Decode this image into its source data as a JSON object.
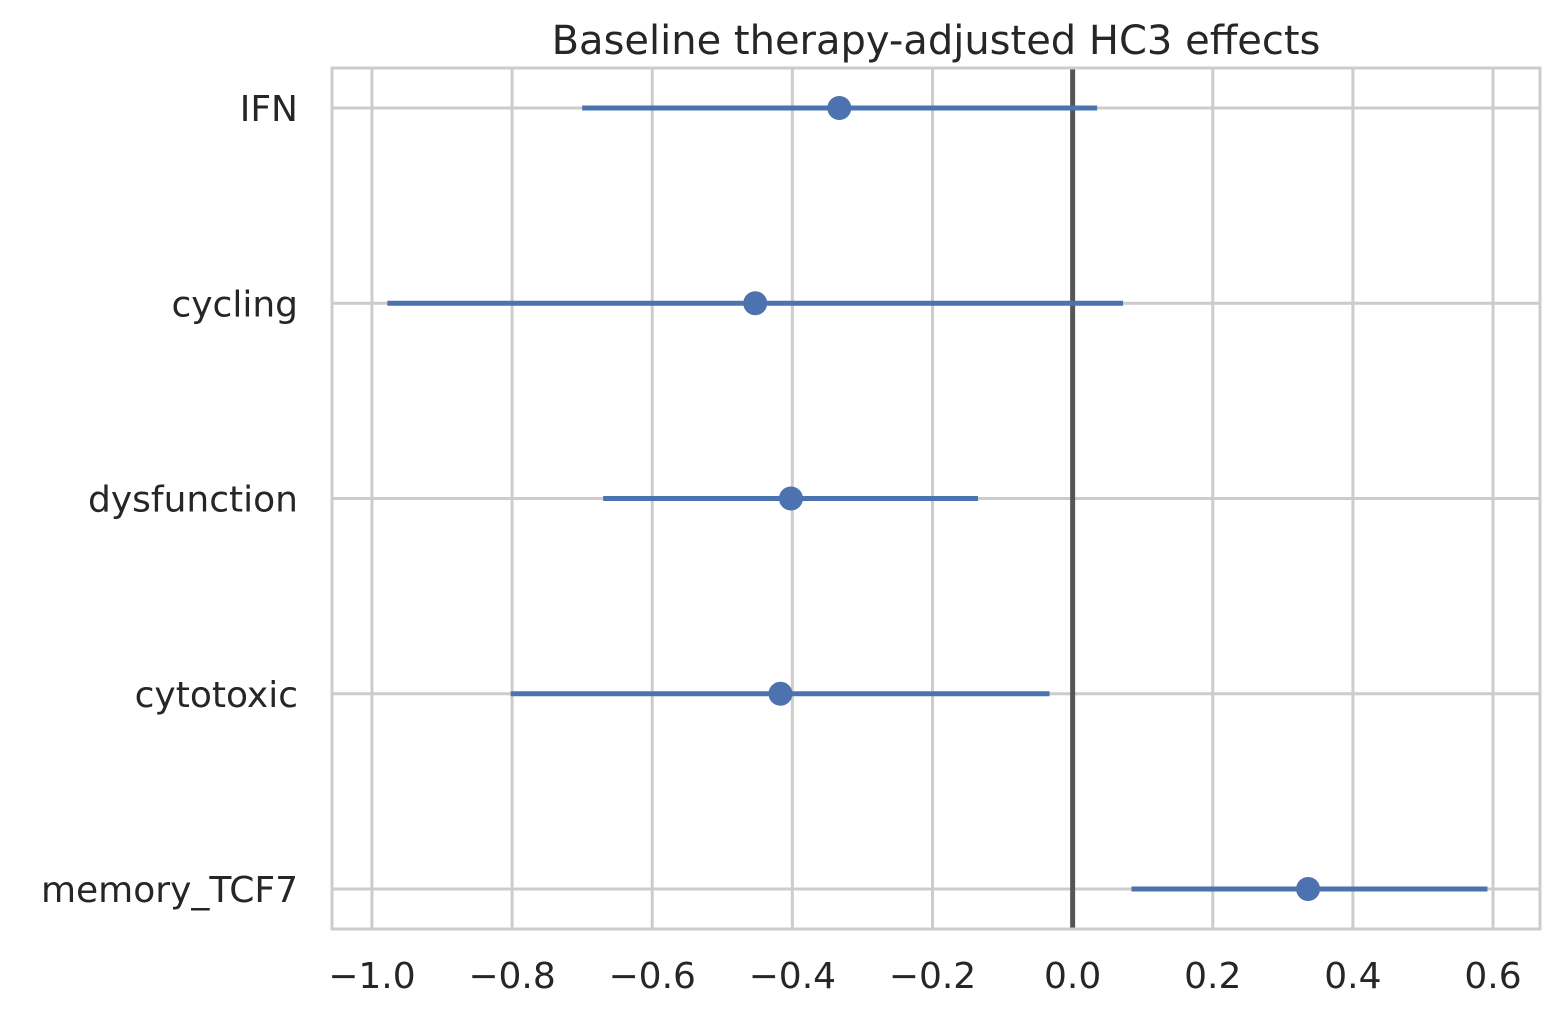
{
  "chart_data": {
    "type": "scatter",
    "subtype": "forest-plot",
    "title": "Baseline therapy-adjusted HC3 effects",
    "xlabel": "",
    "ylabel": "",
    "xlim": [
      -1.057,
      0.667
    ],
    "x_ticks": [
      -1.0,
      -0.8,
      -0.6,
      -0.4,
      -0.2,
      0.0,
      0.2,
      0.4,
      0.6
    ],
    "x_tick_labels": [
      "−1.0",
      "−0.8",
      "−0.6",
      "−0.4",
      "−0.2",
      "0.0",
      "0.2",
      "0.4",
      "0.6"
    ],
    "reference_line_x": 0.0,
    "grid": true,
    "categories": [
      "IFN",
      "cycling",
      "dysfunction",
      "cytotoxic",
      "memory_TCF7"
    ],
    "series": [
      {
        "estimate": [
          -0.333,
          -0.453,
          -0.402,
          -0.417,
          0.336
        ],
        "ci_low": [
          -0.7,
          -0.978,
          -0.67,
          -0.802,
          0.084
        ],
        "ci_high": [
          0.035,
          0.072,
          -0.135,
          -0.033,
          0.592
        ]
      }
    ],
    "colors": {
      "marker": "#4c72b0",
      "grid": "#cccccc",
      "frame": "#cccccc",
      "reference_line": "#555555",
      "text": "#262626"
    }
  }
}
